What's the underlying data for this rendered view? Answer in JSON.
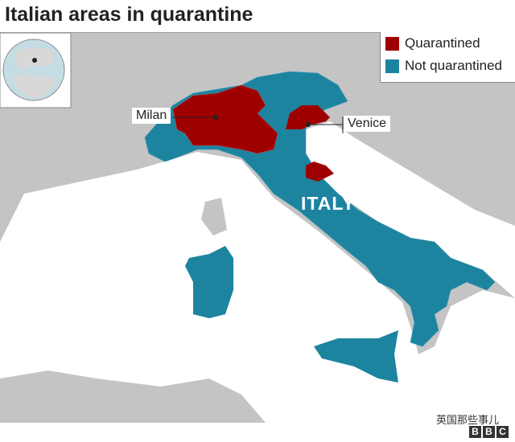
{
  "title": "Italian areas in quarantine",
  "legend": {
    "items": [
      {
        "label": "Quarantined",
        "color": "#9e0000"
      },
      {
        "label": "Not quarantined",
        "color": "#1d84a0"
      }
    ]
  },
  "labels": {
    "milan": "Milan",
    "venice": "Venice",
    "country": "ITALY"
  },
  "colors": {
    "land": "#c4c4c4",
    "sea": "#ffffff",
    "quarantined": "#9e0000",
    "not_quarantined": "#1d84a0"
  },
  "watermark": "英国那些事儿",
  "logo": [
    "B",
    "B",
    "C"
  ]
}
